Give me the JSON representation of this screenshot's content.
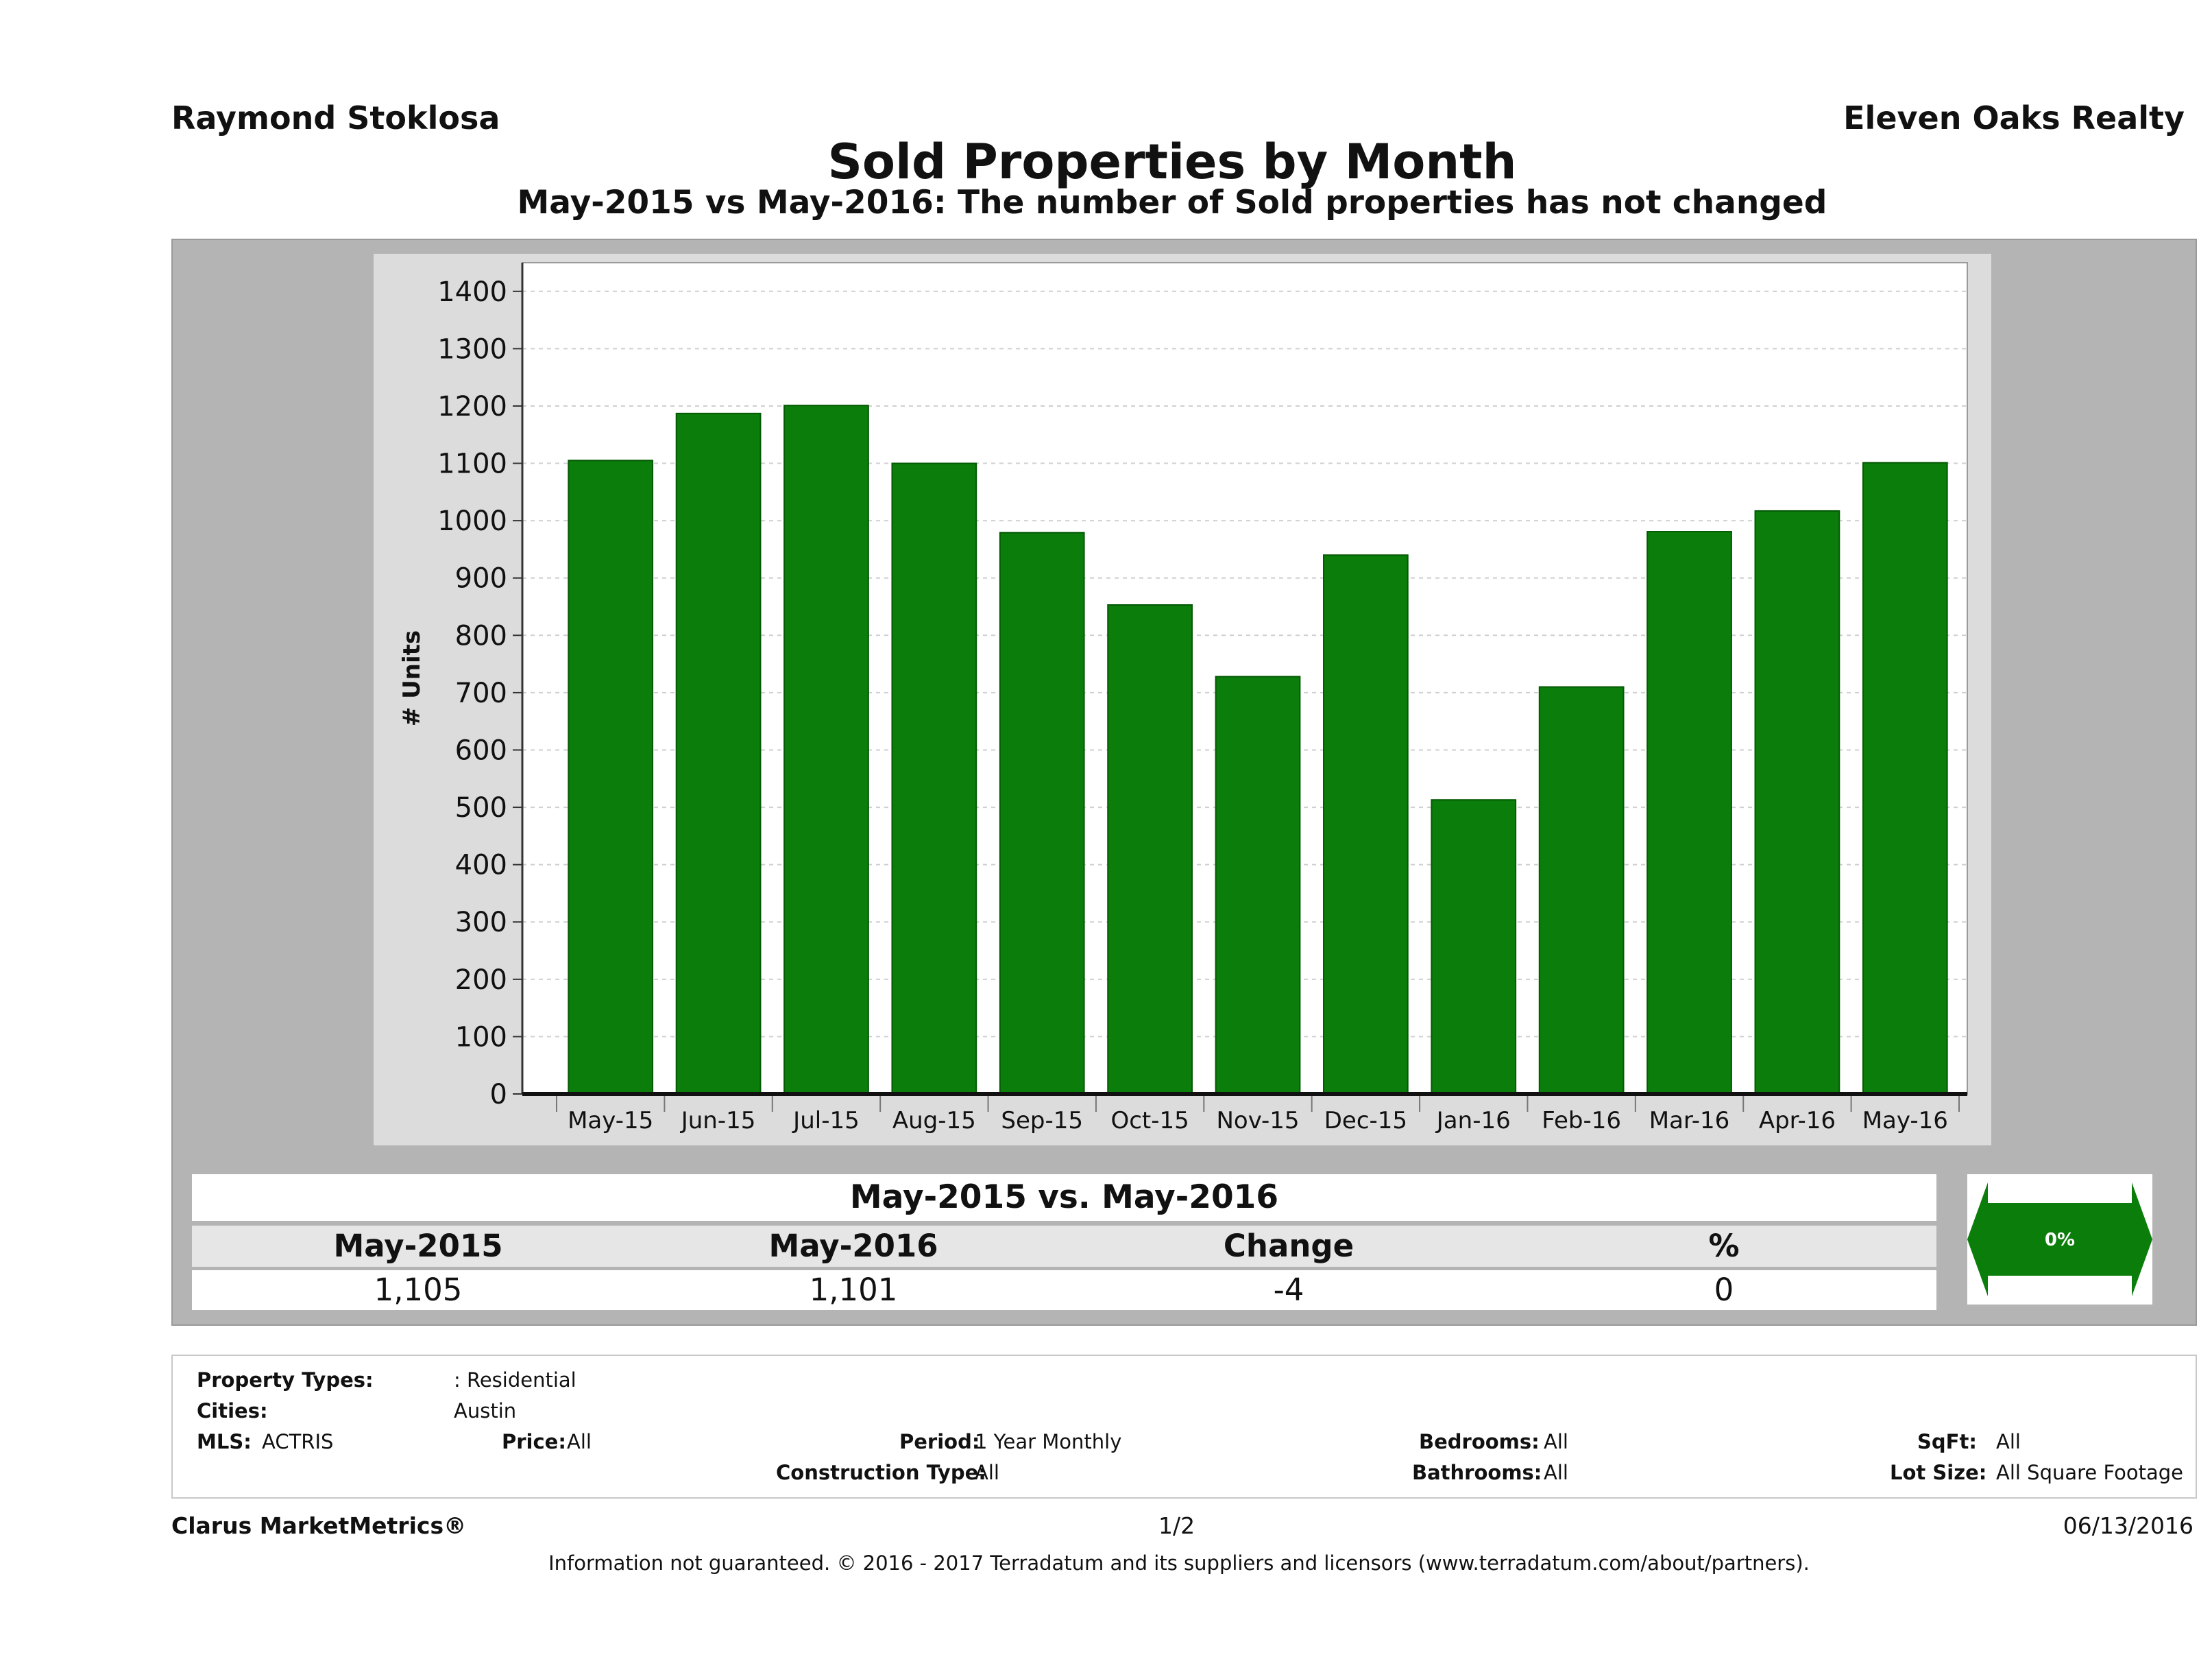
{
  "header": {
    "agent": "Raymond Stoklosa",
    "company": "Eleven Oaks Realty",
    "title": "Sold Properties by Month",
    "subtitle": "May-2015 vs May-2016: The number of Sold  properties has not changed"
  },
  "chart_data": {
    "type": "bar",
    "title": "Sold Properties by Month",
    "subtitle": "May-2015 vs May-2016: The number of Sold  properties has not changed",
    "xlabel": "",
    "ylabel": "# Units",
    "categories": [
      "May-15",
      "Jun-15",
      "Jul-15",
      "Aug-15",
      "Sep-15",
      "Oct-15",
      "Nov-15",
      "Dec-15",
      "Jan-16",
      "Feb-16",
      "Mar-16",
      "Apr-16",
      "May-16"
    ],
    "values": [
      1105,
      1187,
      1201,
      1100,
      979,
      853,
      728,
      940,
      513,
      710,
      981,
      1017,
      1101
    ],
    "ylim": [
      0,
      1450
    ],
    "yticks": [
      "0",
      "100",
      "200",
      "300",
      "400",
      "500",
      "600",
      "700",
      "800",
      "900",
      "1000",
      "1100",
      "1200",
      "1300",
      "1400"
    ],
    "grid": true,
    "colors": {
      "bar": "#0a7d0a",
      "plot_bg": "#ffffff",
      "panel_bg": "#dcdcdc"
    }
  },
  "summary": {
    "heading": "May-2015 vs. May-2016",
    "columns": [
      "May-2015",
      "May-2016",
      "Change",
      "%"
    ],
    "values": [
      "1,105",
      "1,101",
      "-4",
      "0"
    ],
    "badge": "0%"
  },
  "criteria": {
    "property_types_label": "Property Types:",
    "property_types_value": ": Residential",
    "cities_label": "Cities:",
    "cities_value": "Austin",
    "mls_label": "MLS:",
    "mls_value": "ACTRIS",
    "price_label": "Price:",
    "price_value": "All",
    "period_label": "Period:",
    "period_value": "1 Year Monthly",
    "construction_label": "Construction Type:",
    "construction_value": "All",
    "bedrooms_label": "Bedrooms:",
    "bedrooms_value": "All",
    "bathrooms_label": "Bathrooms:",
    "bathrooms_value": "All",
    "sqft_label": "SqFt:",
    "sqft_value": "All",
    "lotsize_label": "Lot Size:",
    "lotsize_value": "All Square Footage"
  },
  "footer": {
    "brand": "Clarus MarketMetrics®",
    "page": "1/2",
    "date": "06/13/2016",
    "disclaimer": "Information not guaranteed. © 2016 - 2017 Terradatum and its suppliers and licensors (www.terradatum.com/about/partners)."
  }
}
